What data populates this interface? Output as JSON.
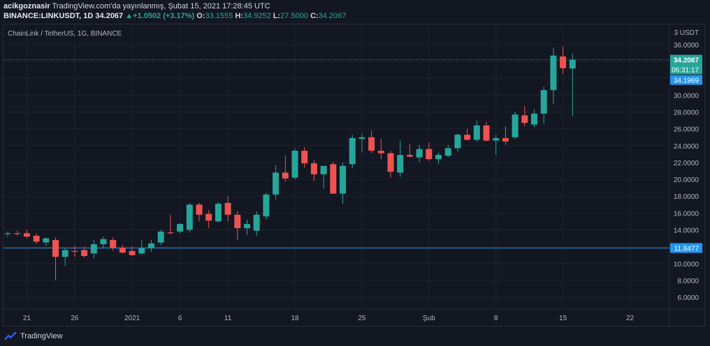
{
  "header": {
    "author": "acikgoznasir",
    "published": "TradingView.com'da yayınlanmış, Şubat 15, 2021 17:28:45 UTC",
    "symbol": "BINANCE:LINKUSDT, 1D",
    "last": "34.2067",
    "change_arrow": "▲",
    "change": "+1.0502 (+3.17%)",
    "open_label": "O:",
    "open": "33.1555",
    "high_label": "H:",
    "high": "34.9252",
    "low_label": "L:",
    "low": "27.5000",
    "close_label": "C:",
    "close": "34.2067"
  },
  "footer": {
    "brand": "TradingView"
  },
  "colors": {
    "background": "#131722",
    "grid": "#1e222d",
    "up": "#26a69a",
    "down": "#ef5350",
    "price_line": "#2196f3",
    "text": "#b2b5be"
  },
  "chart_data": {
    "type": "candlestick",
    "title": "ChainLink / TetherUS, 1G, BINANCE",
    "currency": "USDT",
    "currency_prefix": "3",
    "ylim": [
      4.6,
      38.4
    ],
    "y_ticks": [
      "6.0000",
      "8.0000",
      "10.0000",
      "12.0000",
      "14.0000",
      "16.0000",
      "18.0000",
      "20.0000",
      "22.0000",
      "24.0000",
      "26.0000",
      "28.0000",
      "30.0000",
      "32.0000",
      "34.0000",
      "36.0000"
    ],
    "x_ticks": [
      {
        "label": "21",
        "i": 2
      },
      {
        "label": "26",
        "i": 7
      },
      {
        "label": "2021",
        "i": 13
      },
      {
        "label": "6",
        "i": 18
      },
      {
        "label": "11",
        "i": 23
      },
      {
        "label": "18",
        "i": 30
      },
      {
        "label": "25",
        "i": 37
      },
      {
        "label": "Şub",
        "i": 44
      },
      {
        "label": "8",
        "i": 51
      },
      {
        "label": "15",
        "i": 58
      },
      {
        "label": "22",
        "i": 65
      }
    ],
    "candles": [
      {
        "o": 13.5,
        "h": 13.8,
        "l": 13.2,
        "c": 13.6
      },
      {
        "o": 13.6,
        "h": 13.9,
        "l": 13.3,
        "c": 13.5
      },
      {
        "o": 13.6,
        "h": 14.0,
        "l": 13.0,
        "c": 13.2
      },
      {
        "o": 13.3,
        "h": 13.6,
        "l": 12.3,
        "c": 12.6
      },
      {
        "o": 12.5,
        "h": 13.1,
        "l": 12.1,
        "c": 13.0
      },
      {
        "o": 12.8,
        "h": 13.1,
        "l": 8.0,
        "c": 10.8
      },
      {
        "o": 10.8,
        "h": 11.9,
        "l": 9.7,
        "c": 11.6
      },
      {
        "o": 11.5,
        "h": 12.1,
        "l": 10.8,
        "c": 11.4
      },
      {
        "o": 11.6,
        "h": 12.0,
        "l": 10.7,
        "c": 10.9
      },
      {
        "o": 11.2,
        "h": 12.8,
        "l": 10.6,
        "c": 12.3
      },
      {
        "o": 12.3,
        "h": 13.2,
        "l": 11.8,
        "c": 12.9
      },
      {
        "o": 12.8,
        "h": 13.1,
        "l": 11.5,
        "c": 11.9
      },
      {
        "o": 11.9,
        "h": 12.2,
        "l": 11.2,
        "c": 11.3
      },
      {
        "o": 11.5,
        "h": 12.0,
        "l": 10.9,
        "c": 11.0
      },
      {
        "o": 11.2,
        "h": 12.8,
        "l": 11.0,
        "c": 11.8
      },
      {
        "o": 11.8,
        "h": 12.8,
        "l": 11.4,
        "c": 12.4
      },
      {
        "o": 12.5,
        "h": 14.0,
        "l": 12.2,
        "c": 13.8
      },
      {
        "o": 13.7,
        "h": 15.8,
        "l": 13.5,
        "c": 13.6
      },
      {
        "o": 13.8,
        "h": 14.8,
        "l": 13.6,
        "c": 14.7
      },
      {
        "o": 14.0,
        "h": 17.2,
        "l": 13.7,
        "c": 17.0
      },
      {
        "o": 17.0,
        "h": 17.2,
        "l": 15.0,
        "c": 15.8
      },
      {
        "o": 15.9,
        "h": 16.4,
        "l": 14.2,
        "c": 15.1
      },
      {
        "o": 15.0,
        "h": 17.3,
        "l": 14.9,
        "c": 17.1
      },
      {
        "o": 17.2,
        "h": 18.0,
        "l": 15.0,
        "c": 15.8
      },
      {
        "o": 15.8,
        "h": 16.2,
        "l": 12.8,
        "c": 14.2
      },
      {
        "o": 14.2,
        "h": 15.2,
        "l": 13.4,
        "c": 14.7
      },
      {
        "o": 13.9,
        "h": 16.2,
        "l": 13.3,
        "c": 15.8
      },
      {
        "o": 15.6,
        "h": 18.4,
        "l": 15.2,
        "c": 18.2
      },
      {
        "o": 18.2,
        "h": 21.7,
        "l": 17.6,
        "c": 20.8
      },
      {
        "o": 20.8,
        "h": 22.8,
        "l": 19.7,
        "c": 20.1
      },
      {
        "o": 20.2,
        "h": 23.7,
        "l": 20.0,
        "c": 23.4
      },
      {
        "o": 23.4,
        "h": 23.8,
        "l": 21.4,
        "c": 21.9
      },
      {
        "o": 21.9,
        "h": 22.3,
        "l": 19.8,
        "c": 20.6
      },
      {
        "o": 20.6,
        "h": 21.6,
        "l": 18.9,
        "c": 21.6
      },
      {
        "o": 21.8,
        "h": 22.1,
        "l": 18.3,
        "c": 18.3
      },
      {
        "o": 18.3,
        "h": 22.0,
        "l": 17.1,
        "c": 21.6
      },
      {
        "o": 21.8,
        "h": 25.3,
        "l": 21.3,
        "c": 24.9
      },
      {
        "o": 24.8,
        "h": 25.4,
        "l": 23.2,
        "c": 25.0
      },
      {
        "o": 25.0,
        "h": 25.8,
        "l": 23.1,
        "c": 23.4
      },
      {
        "o": 23.4,
        "h": 24.8,
        "l": 22.4,
        "c": 23.1
      },
      {
        "o": 23.1,
        "h": 23.4,
        "l": 20.2,
        "c": 20.9
      },
      {
        "o": 20.8,
        "h": 24.6,
        "l": 20.3,
        "c": 22.9
      },
      {
        "o": 22.9,
        "h": 24.2,
        "l": 22.6,
        "c": 22.7
      },
      {
        "o": 22.6,
        "h": 24.1,
        "l": 22.0,
        "c": 23.6
      },
      {
        "o": 23.6,
        "h": 24.4,
        "l": 22.2,
        "c": 22.4
      },
      {
        "o": 22.4,
        "h": 23.2,
        "l": 21.8,
        "c": 22.9
      },
      {
        "o": 22.8,
        "h": 24.1,
        "l": 22.6,
        "c": 23.7
      },
      {
        "o": 23.7,
        "h": 25.4,
        "l": 23.3,
        "c": 25.3
      },
      {
        "o": 25.3,
        "h": 26.0,
        "l": 24.6,
        "c": 24.7
      },
      {
        "o": 24.7,
        "h": 27.0,
        "l": 24.5,
        "c": 26.4
      },
      {
        "o": 26.4,
        "h": 26.8,
        "l": 24.5,
        "c": 24.6
      },
      {
        "o": 24.6,
        "h": 25.3,
        "l": 22.9,
        "c": 24.9
      },
      {
        "o": 24.9,
        "h": 26.3,
        "l": 24.1,
        "c": 24.5
      },
      {
        "o": 25.0,
        "h": 28.0,
        "l": 24.8,
        "c": 27.7
      },
      {
        "o": 27.6,
        "h": 28.7,
        "l": 26.3,
        "c": 26.7
      },
      {
        "o": 26.5,
        "h": 28.3,
        "l": 26.2,
        "c": 27.8
      },
      {
        "o": 27.8,
        "h": 31.0,
        "l": 26.6,
        "c": 30.6
      },
      {
        "o": 30.6,
        "h": 35.6,
        "l": 29.0,
        "c": 34.7
      },
      {
        "o": 34.6,
        "h": 35.8,
        "l": 32.5,
        "c": 33.2
      },
      {
        "o": 33.16,
        "h": 34.93,
        "l": 27.5,
        "c": 34.21
      }
    ],
    "last_price_label": "34.2067",
    "countdown_label": "06:31:17",
    "bid_label": "34.1969",
    "hline_value": 11.8477,
    "hline_label": "11.8477"
  }
}
